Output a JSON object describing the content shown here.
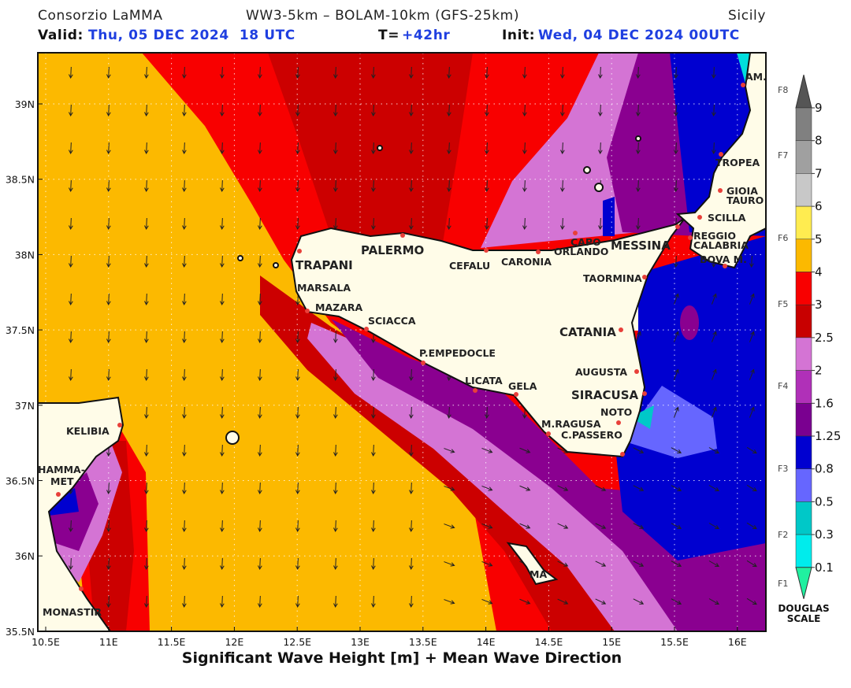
{
  "header": {
    "left": "Consorzio LaMMA",
    "center": "WW3-5km – BOLAM-10km (GFS-25km)",
    "right": "Sicily",
    "valid_label": "Valid:",
    "valid": "Thu, 05 DEC 2024  18 UTC",
    "t_label": "T=",
    "t": "+42hr",
    "init_label": "Init:",
    "init": "Wed, 04 DEC 2024 00UTC"
  },
  "map": {
    "lat_labels": [
      "39N",
      "38.5N",
      "38N",
      "37.5N",
      "37N",
      "36.5N",
      "36N",
      "35.5N"
    ],
    "lon_labels": [
      "10.5E",
      "11E",
      "11.5E",
      "12E",
      "12.5E",
      "13E",
      "13.5E",
      "14E",
      "14.5E",
      "15E",
      "15.5E",
      "16E"
    ],
    "places": [
      "TRAPANI",
      "PALERMO",
      "CEFALU",
      "CARONIA",
      "CAPO",
      "ORLANDO",
      "MESSINA",
      "TROPEA",
      "GIOIA",
      "TAURO",
      "SCILLA",
      "REGGIO",
      "CALABRIA",
      "BOVA M.",
      "AM.",
      "TAORMINA",
      "CATANIA",
      "AUGUSTA",
      "SIRACUSA",
      "NOTO",
      "M.RAGUSA",
      "C.PASSERO",
      "GELA",
      "LICATA",
      "P.EMPEDOCLE",
      "SCIACCA",
      "MAZARA",
      "MARSALA",
      "KELIBIA",
      "HAMMA-",
      "MET",
      "MONASTIR",
      "MA"
    ],
    "x_label": "Significant Wave Height [m] + Mean Wave Direction"
  },
  "legend": {
    "levels": [
      "9",
      "8",
      "7",
      "6",
      "5",
      "4",
      "3",
      "2.5",
      "2",
      "1.6",
      "1.25",
      "0.8",
      "0.5",
      "0.3",
      "0.1"
    ],
    "douglas": [
      "F8",
      "F7",
      "F6",
      "F5",
      "F4",
      "F3",
      "F2",
      "F1"
    ],
    "caption": [
      "DOUGLAS",
      "SCALE"
    ]
  }
}
